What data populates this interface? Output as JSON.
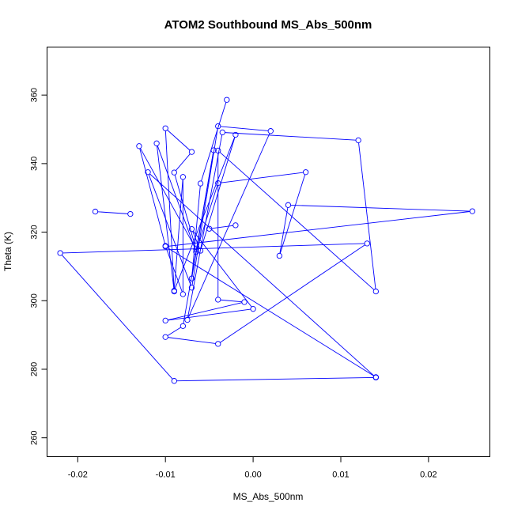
{
  "chart_data": {
    "type": "line",
    "title": "ATOM2 Southbound MS_Abs_500nm",
    "xlabel": "MS_Abs_500nm",
    "ylabel": "Theta (K)",
    "xlim": [
      -0.0235,
      0.027
    ],
    "ylim": [
      254.5,
      374.0
    ],
    "xticks": [
      -0.02,
      -0.01,
      0.0,
      0.01,
      0.02
    ],
    "xtick_labels": [
      "-0.02",
      "-0.01",
      "0.00",
      "0.01",
      "0.02"
    ],
    "yticks": [
      260,
      280,
      300,
      320,
      340,
      360
    ],
    "ytick_labels": [
      "260",
      "280",
      "300",
      "320",
      "340",
      "360"
    ],
    "grid": false,
    "legend": "none",
    "line_color": "#0000ff",
    "marker": "open-circle",
    "series": [
      {
        "points": [
          {
            "x": -0.003,
            "y": 358.6
          },
          {
            "x": -0.006,
            "y": 334.2
          },
          {
            "x": -0.007,
            "y": 306.5
          },
          {
            "x": -0.0045,
            "y": 343.9
          },
          {
            "x": -0.008,
            "y": 292.6
          },
          {
            "x": -0.01,
            "y": 289.4
          },
          {
            "x": -0.004,
            "y": 287.4
          },
          {
            "x": 0.013,
            "y": 316.7
          },
          {
            "x": -0.022,
            "y": 313.9
          },
          {
            "x": -0.009,
            "y": 276.6
          },
          {
            "x": 0.014,
            "y": 277.6
          },
          {
            "x": -0.012,
            "y": 337.5
          },
          {
            "x": -0.007,
            "y": 303.8
          },
          {
            "x": -0.004,
            "y": 350.9
          },
          {
            "x": 0.002,
            "y": 349.5
          },
          {
            "x": -0.0075,
            "y": 294.4
          },
          {
            "x": -0.0035,
            "y": 349.1
          },
          {
            "x": 0.012,
            "y": 346.8
          },
          {
            "x": 0.014,
            "y": 302.7
          },
          {
            "x": -0.004,
            "y": 343.8
          },
          {
            "x": -0.004,
            "y": 300.3
          },
          {
            "x": -0.001,
            "y": 299.6
          },
          {
            "x": -0.01,
            "y": 294.2
          },
          {
            "x": 0.0,
            "y": 297.6
          },
          {
            "x": -0.007,
            "y": 320.9
          },
          {
            "x": -0.006,
            "y": 314.6
          },
          {
            "x": -0.002,
            "y": 348.4
          },
          {
            "x": -0.009,
            "y": 302.9
          },
          {
            "x": -0.008,
            "y": 336.1
          },
          {
            "x": -0.008,
            "y": 301.9
          },
          {
            "x": -0.01,
            "y": 316.0
          },
          {
            "x": -0.013,
            "y": 345.1
          },
          {
            "x": -0.0065,
            "y": 315.0
          },
          {
            "x": -0.009,
            "y": 337.4
          },
          {
            "x": -0.007,
            "y": 343.4
          },
          {
            "x": -0.01,
            "y": 350.3
          },
          {
            "x": -0.009,
            "y": 302.7
          },
          {
            "x": -0.011,
            "y": 345.9
          },
          {
            "x": -0.0065,
            "y": 314.2
          },
          {
            "x": -0.004,
            "y": 334.3
          },
          {
            "x": 0.006,
            "y": 337.5
          },
          {
            "x": 0.003,
            "y": 313.1
          },
          {
            "x": 0.004,
            "y": 327.9
          },
          {
            "x": 0.025,
            "y": 326.1
          },
          {
            "x": -0.01,
            "y": 315.8
          },
          {
            "x": 0.014,
            "y": 277.7
          }
        ]
      },
      {
        "points": [
          {
            "x": -0.018,
            "y": 326.0
          },
          {
            "x": -0.014,
            "y": 325.3
          }
        ]
      },
      {
        "points": [
          {
            "x": -0.005,
            "y": 321.0
          },
          {
            "x": -0.002,
            "y": 322.0
          }
        ]
      }
    ]
  }
}
